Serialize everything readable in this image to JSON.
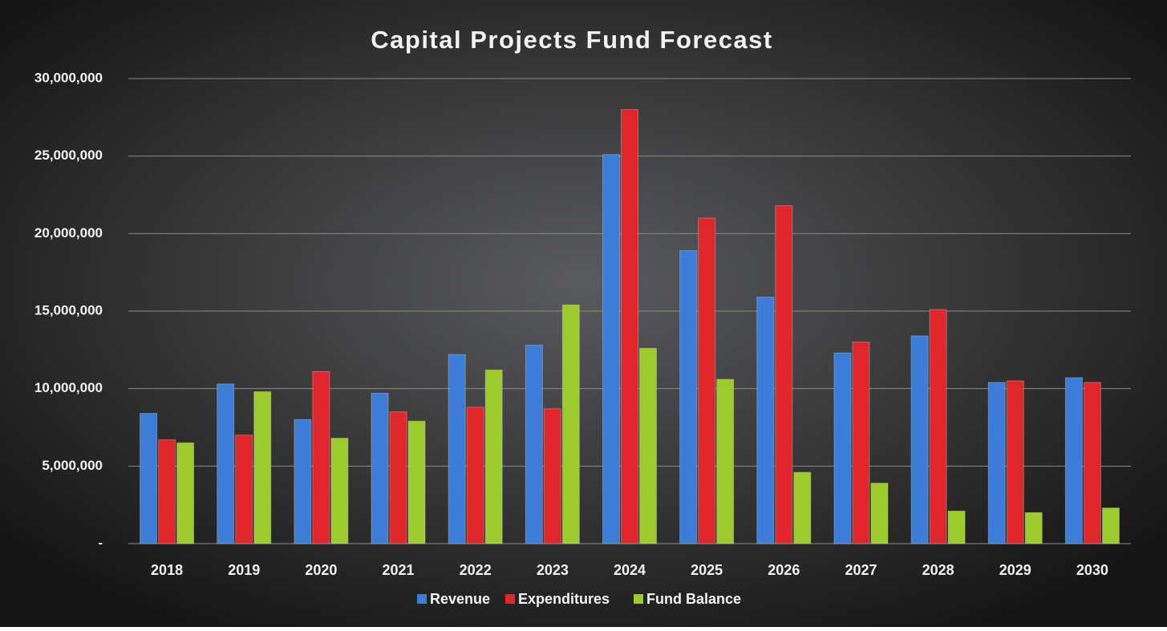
{
  "chart_data": {
    "type": "bar",
    "title": "Capital Projects Fund Forecast",
    "categories": [
      "2018",
      "2019",
      "2020",
      "2021",
      "2022",
      "2023",
      "2024",
      "2025",
      "2026",
      "2027",
      "2028",
      "2029",
      "2030"
    ],
    "series": [
      {
        "name": "Revenue",
        "color": "#3b7dd8",
        "values": [
          8400000,
          10300000,
          8000000,
          9700000,
          12200000,
          12800000,
          25100000,
          18900000,
          15900000,
          12300000,
          13400000,
          10400000,
          10700000
        ]
      },
      {
        "name": "Expenditures",
        "color": "#e0262a",
        "values": [
          6700000,
          7000000,
          11100000,
          8500000,
          8800000,
          8700000,
          28000000,
          21000000,
          21800000,
          13000000,
          15100000,
          10500000,
          10400000
        ]
      },
      {
        "name": "Fund Balance",
        "color": "#9ccb2c",
        "values": [
          6500000,
          9800000,
          6800000,
          7900000,
          11200000,
          15400000,
          12600000,
          10600000,
          4600000,
          3900000,
          2100000,
          2000000,
          2300000
        ]
      }
    ],
    "ylim": [
      0,
      30000000
    ],
    "yticks": [
      {
        "value": 0,
        "label": "-"
      },
      {
        "value": 5000000,
        "label": "5,000,000"
      },
      {
        "value": 10000000,
        "label": "10,000,000"
      },
      {
        "value": 15000000,
        "label": "15,000,000"
      },
      {
        "value": 20000000,
        "label": "20,000,000"
      },
      {
        "value": 25000000,
        "label": "25,000,000"
      },
      {
        "value": 30000000,
        "label": "30,000,000"
      }
    ],
    "grid": true,
    "legend": "bottom"
  }
}
